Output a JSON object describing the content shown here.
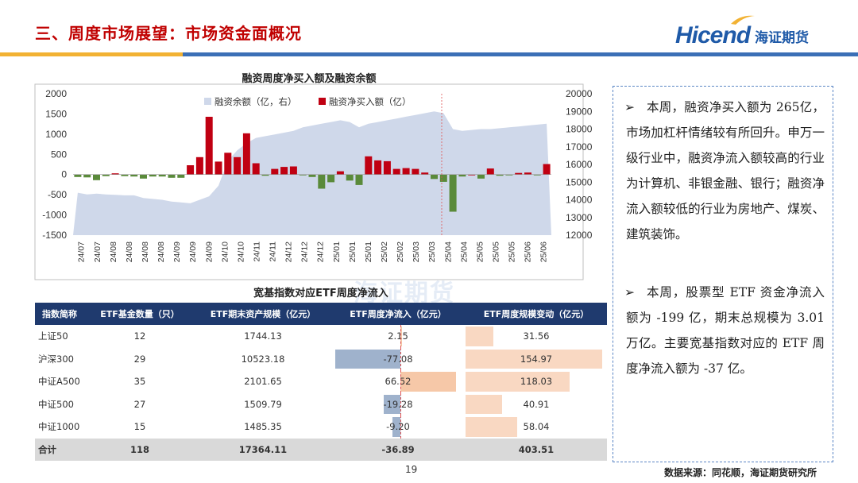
{
  "header": {
    "title": "三、周度市场展望：市场资金面概况",
    "logo_en": "Hicend",
    "logo_cn": "海证期货"
  },
  "colors": {
    "accent_red": "#c00000",
    "brand_blue": "#1f5aa8",
    "rule_yellow": "#f2b233",
    "rule_blue": "#3b6fb6",
    "area_fill": "#cfd8ea",
    "bar_positive": "#c00012",
    "bar_negative": "#5a8a3a",
    "table_header": "#1f3a6e",
    "neg_bar": "#9fb2cc",
    "pos_bar": "#f6c8a8"
  },
  "chart_data": [
    {
      "type": "bar",
      "title": "融资周度净买入额及融资余额",
      "legend": [
        "融资余额（亿，右）",
        "融资净买入额（亿）"
      ],
      "legend_position": "top",
      "x_ticks": [
        "24/07",
        "24/07",
        "24/08",
        "24/08",
        "24/08",
        "24/08",
        "24/09",
        "24/09",
        "24/09",
        "24/10",
        "24/10",
        "24/11",
        "24/11",
        "24/12",
        "24/12",
        "24/12",
        "25/01",
        "25/01",
        "25/01",
        "25/02",
        "25/02",
        "25/03",
        "25/03",
        "25/04",
        "25/04",
        "25/05",
        "25/05",
        "25/05",
        "25/06",
        "25/06"
      ],
      "ylim_left": [
        -1500,
        2000
      ],
      "yticks_left": [
        2000,
        1500,
        1000,
        500,
        0,
        -500,
        -1000,
        -1500
      ],
      "ylim_right": [
        12000,
        20000
      ],
      "yticks_right": [
        20000,
        19000,
        18000,
        17000,
        16000,
        15000,
        14000,
        13000,
        12000
      ],
      "series": [
        {
          "name": "融资净买入额（亿）",
          "axis": "left",
          "values": [
            -60,
            -70,
            -140,
            -40,
            30,
            -40,
            -50,
            -100,
            -50,
            -50,
            -80,
            -80,
            230,
            430,
            1430,
            320,
            540,
            430,
            1020,
            280,
            -30,
            140,
            190,
            200,
            -10,
            -60,
            -350,
            -190,
            80,
            -150,
            -260,
            450,
            350,
            330,
            140,
            160,
            140,
            50,
            -110,
            -180,
            -920,
            -50,
            0,
            -100,
            150,
            -30,
            -20,
            40,
            50,
            -20,
            260
          ],
          "values_note": "weekly"
        },
        {
          "name": "融资余额（亿，右）",
          "axis": "right",
          "values": [
            14400,
            14300,
            14350,
            14300,
            14280,
            14250,
            14250,
            14100,
            14050,
            14000,
            13900,
            13850,
            13800,
            14000,
            14200,
            14800,
            16200,
            16800,
            17200,
            17500,
            17600,
            17700,
            17800,
            17900,
            18100,
            18200,
            18300,
            18400,
            18500,
            18400,
            18100,
            18300,
            18400,
            18500,
            18600,
            18700,
            18800,
            18900,
            19000,
            18900,
            18000,
            17900,
            17950,
            18000,
            18000,
            18050,
            18100,
            18150,
            18200,
            18250,
            18300
          ]
        }
      ]
    },
    {
      "type": "table",
      "title": "宽基指数对应ETF周度净流入",
      "columns": [
        "指数简称",
        "ETF基金数量（只）",
        "ETF期末资产规模（亿元）",
        "ETF周度净流入（亿元）",
        "ETF周度规模变动（亿元）"
      ],
      "rows": [
        {
          "name": "上证50",
          "count": "12",
          "aum": "1744.13",
          "flow": "2.15",
          "flow_value": 2.15,
          "change": "31.56",
          "change_value": 31.56
        },
        {
          "name": "沪深300",
          "count": "29",
          "aum": "10523.18",
          "flow": "-77.08",
          "flow_value": -77.08,
          "change": "154.97",
          "change_value": 154.97
        },
        {
          "name": "中证A500",
          "count": "35",
          "aum": "2101.65",
          "flow": "66.52",
          "flow_value": 66.52,
          "change": "118.03",
          "change_value": 118.03
        },
        {
          "name": "中证500",
          "count": "27",
          "aum": "1509.79",
          "flow": "-19.28",
          "flow_value": -19.28,
          "change": "40.91",
          "change_value": 40.91
        },
        {
          "name": "中证1000",
          "count": "15",
          "aum": "1485.35",
          "flow": "-9.20",
          "flow_value": -9.2,
          "change": "58.04",
          "change_value": 58.04
        }
      ],
      "total": {
        "name": "合计",
        "count": "118",
        "aum": "17364.11",
        "flow": "-36.89",
        "change": "403.51"
      }
    }
  ],
  "commentary": [
    {
      "bullet": "➢",
      "text": "本周，融资净买入额为 265亿，市场加杠杆情绪较有所回升。申万一级行业中，融资净流入额较高的行业为计算机、非银金融、银行；融资净流入额较低的行业为房地产、煤炭、建筑装饰。"
    },
    {
      "bullet": "➢",
      "text": "本周，股票型 ETF 资金净流入额为 -199 亿，期末总规模为 3.01万亿。主要宽基指数对应的 ETF 周度净流入额为 -37 亿。"
    }
  ],
  "footer": {
    "page": "19",
    "source": "数据来源：同花顺，海证期货研究所"
  },
  "watermark": "海证期货"
}
